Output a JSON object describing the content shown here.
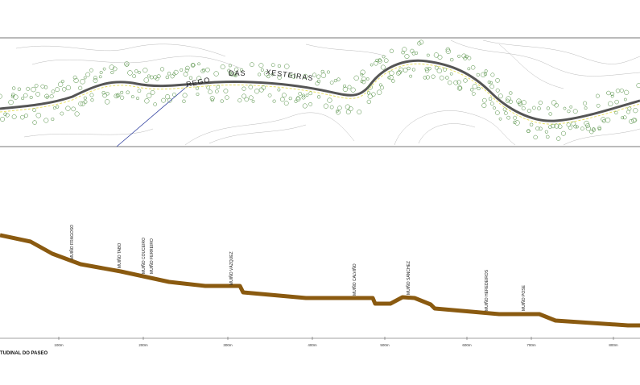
{
  "plan": {
    "labels": [
      "REGO",
      "DAS",
      "XESTEIRAS"
    ]
  },
  "profile": {
    "mills": [
      "MUIÑO FRAGOSO",
      "MUIÑO TABO",
      "MUIÑO COUCEIRO",
      "MUIÑO FERREIRO",
      "MUIÑO VÁZQUEZ",
      "MUIÑO CALVIÑO",
      "MUIÑO SÁNCHEZ",
      "MUIÑO HEREDEIROS",
      "MUIÑO POSE"
    ],
    "distances": [
      "100m",
      "200m",
      "300m",
      "400m",
      "500m",
      "600m",
      "700m",
      "800m"
    ],
    "title": "TUDINAL DO PASEO"
  }
}
